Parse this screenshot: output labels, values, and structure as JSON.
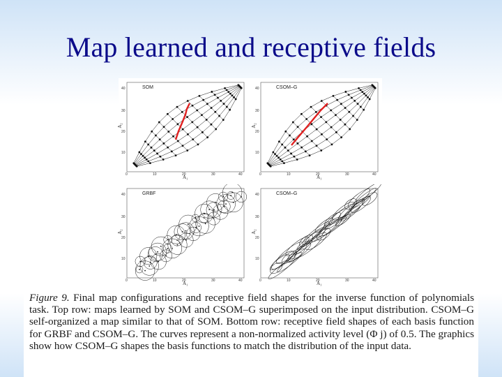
{
  "slide": {
    "title": "Map learned and receptive fields"
  },
  "figure": {
    "panels": [
      {
        "label": "SOM",
        "xlabel": "A₁",
        "ylabel": "A₂",
        "xticks": [
          "0",
          "10",
          "20",
          "30",
          "40"
        ],
        "yticks": [
          "10",
          "20",
          "30",
          "40"
        ]
      },
      {
        "label": "CSOM–G",
        "xlabel": "A₁",
        "ylabel": "A₂",
        "xticks": [
          "0",
          "10",
          "20",
          "30",
          "40"
        ],
        "yticks": [
          "10",
          "20",
          "30",
          "40"
        ]
      },
      {
        "label": "GRBF",
        "xlabel": "A₁",
        "ylabel": "A₂",
        "xticks": [
          "0",
          "10",
          "20",
          "30",
          "40"
        ],
        "yticks": [
          "10",
          "20",
          "30",
          "40"
        ]
      },
      {
        "label": "CSOM–G",
        "xlabel": "A₁",
        "ylabel": "A₂",
        "xticks": [
          "0",
          "10",
          "20",
          "30",
          "40"
        ],
        "yticks": [
          "10",
          "20",
          "30",
          "40"
        ]
      }
    ],
    "colors": {
      "highlight_curve": "#e02020",
      "ink": "#111111"
    }
  },
  "caption": {
    "fig_label": "Figure 9.",
    "text": "Final map configurations and receptive field shapes for the inverse function of polynomials task. Top row: maps learned by SOM and CSOM–G superimposed on the input distribution. CSOM–G self-organized a map similar to that of SOM. Bottom row: receptive field shapes of each basis function for GRBF and CSOM–G. The curves represent a non-normalized activity level (Φ j) of 0.5. The graphics show how CSOM–G shapes the basis functions to match the distribution of the input data."
  }
}
